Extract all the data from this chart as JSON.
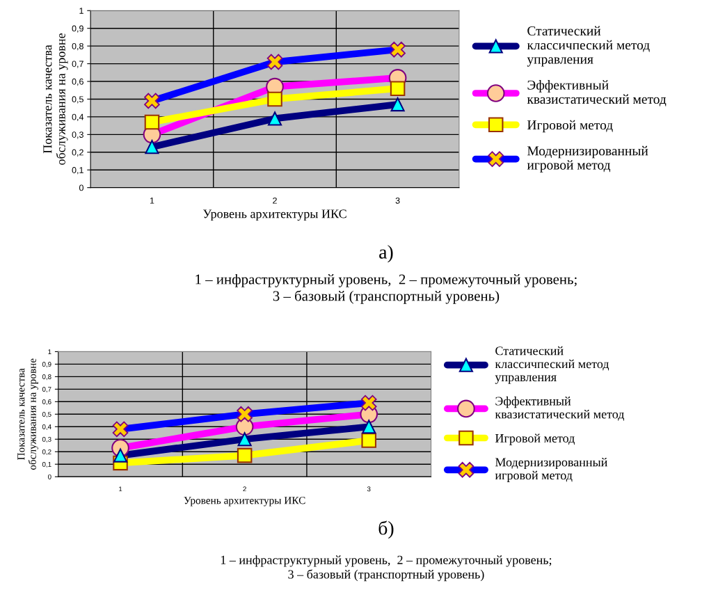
{
  "chart_data": [
    {
      "type": "line",
      "categories": [
        "1",
        "2",
        "3"
      ],
      "xlabel": "Уровень архитектуры ИКС",
      "ylabel": "Показатель качества\nобслуживания на уровне",
      "ylim": [
        0,
        1
      ],
      "yticks": [
        0,
        {
          "value": 0.1,
          "label": "0,1"
        },
        {
          "value": 0.2,
          "label": "0,2"
        },
        {
          "value": 0.3,
          "label": "0,3"
        },
        {
          "value": 0.4,
          "label": "0,4"
        },
        {
          "value": 0.5,
          "label": "0,5"
        },
        {
          "value": 0.6,
          "label": "0,6"
        },
        {
          "value": 0.7,
          "label": "0,7"
        },
        {
          "value": 0.8,
          "label": "0,8"
        },
        {
          "value": 0.9,
          "label": "0,9"
        },
        1
      ],
      "grid": true,
      "legend": "right",
      "series": [
        {
          "name": "Статический\nклассичпеский метод\nуправления",
          "color": "#000080",
          "marker": "triangle",
          "values": [
            0.23,
            0.39,
            0.47
          ]
        },
        {
          "name": "Эффективный\nквазистатический метод",
          "color": "#ff00ff",
          "marker": "circle",
          "values": [
            0.3,
            0.57,
            0.62
          ]
        },
        {
          "name": "Игровой метод",
          "color": "#ffff00",
          "marker": "square",
          "values": [
            0.37,
            0.5,
            0.56
          ]
        },
        {
          "name": "Модернизированный\nигровой метод",
          "color": "#0000ff",
          "marker": "cross",
          "values": [
            0.49,
            0.71,
            0.78
          ]
        }
      ],
      "annotations": [
        "а)",
        "1 – инфраструктурный уровень,  2 – промежуточный уровень;\n3 – базовый (транспортный уровень)"
      ]
    },
    {
      "type": "line",
      "categories": [
        "1",
        "2",
        "3"
      ],
      "xlabel": "Уровень архитектуры ИКС",
      "ylabel": "Показатель качества\nобслуживания на уровне",
      "ylim": [
        0,
        1
      ],
      "yticks": [
        0,
        {
          "value": 0.1,
          "label": "0,1"
        },
        {
          "value": 0.2,
          "label": "0,2"
        },
        {
          "value": 0.3,
          "label": "0,3"
        },
        {
          "value": 0.4,
          "label": "0,4"
        },
        {
          "value": 0.5,
          "label": "0,5"
        },
        {
          "value": 0.6,
          "label": "0,6"
        },
        {
          "value": 0.7,
          "label": "0,7"
        },
        {
          "value": 0.8,
          "label": "0,8"
        },
        {
          "value": 0.9,
          "label": "0,9"
        },
        1
      ],
      "grid": true,
      "legend": "right",
      "series": [
        {
          "name": "Статический\nклассичпеский метод\nуправления",
          "color": "#000080",
          "marker": "triangle",
          "values": [
            0.17,
            0.3,
            0.4
          ]
        },
        {
          "name": "Эффективный\nквазистатический метод",
          "color": "#ff00ff",
          "marker": "circle",
          "values": [
            0.23,
            0.4,
            0.5
          ]
        },
        {
          "name": "Игровой метод",
          "color": "#ffff00",
          "marker": "square",
          "values": [
            0.11,
            0.17,
            0.29
          ]
        },
        {
          "name": "Модернизированный\nигровой метод",
          "color": "#0000ff",
          "marker": "cross",
          "values": [
            0.38,
            0.5,
            0.59
          ]
        }
      ],
      "annotations": [
        "б)",
        "1 – инфраструктурный уровень,  2 – промежуточный уровень;\n3 – базовый (транспортный уровень)"
      ]
    }
  ]
}
